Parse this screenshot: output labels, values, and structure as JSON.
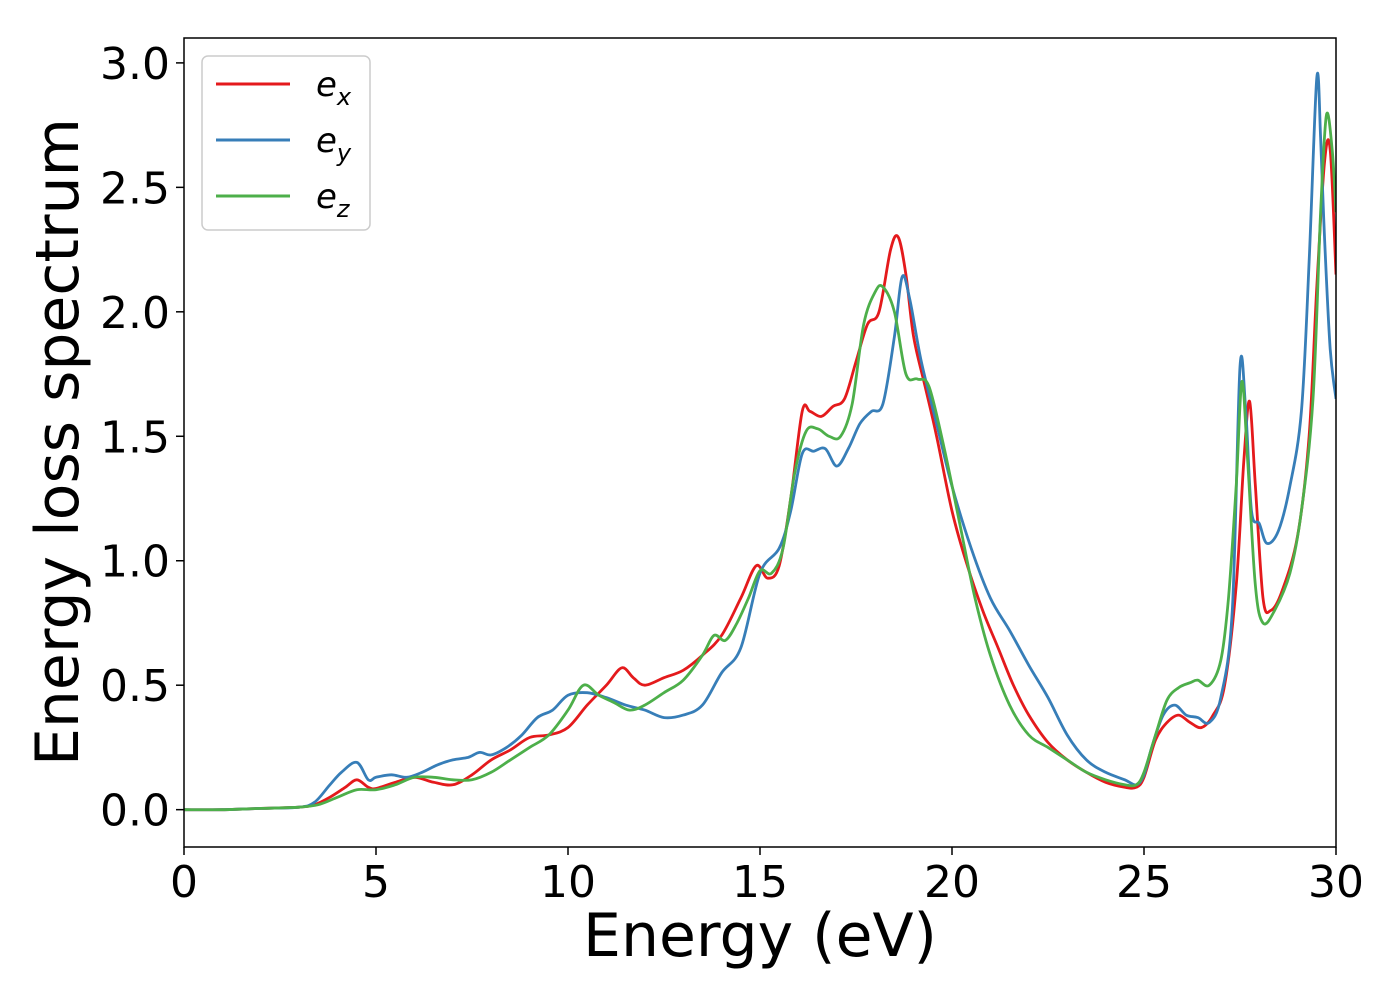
{
  "chart_data": {
    "type": "line",
    "xlabel": "Energy (eV)",
    "ylabel": "Energy loss spectrum",
    "xlim": [
      0,
      30
    ],
    "ylim": [
      -0.15,
      3.1
    ],
    "xticks": [
      "0",
      "5",
      "10",
      "15",
      "20",
      "25",
      "30"
    ],
    "yticks": [
      "0.0",
      "0.5",
      "1.0",
      "1.5",
      "2.0",
      "2.5",
      "3.0"
    ],
    "grid": false,
    "legend_position": "top-left",
    "series": [
      {
        "name": "e",
        "subscript": "x",
        "color": "#e41a1c",
        "x": [
          0,
          1,
          2,
          3,
          3.4,
          3.8,
          4.2,
          4.5,
          4.8,
          5.0,
          5.5,
          6.0,
          6.5,
          7.0,
          7.5,
          8.0,
          8.5,
          9.0,
          9.5,
          10.0,
          10.5,
          11.0,
          11.4,
          11.7,
          12.0,
          12.5,
          13.0,
          13.5,
          14.0,
          14.5,
          14.9,
          15.2,
          15.5,
          15.8,
          16.1,
          16.3,
          16.6,
          16.9,
          17.2,
          17.5,
          17.8,
          18.1,
          18.4,
          18.6,
          18.8,
          19.0,
          19.3,
          19.6,
          20.0,
          20.4,
          20.8,
          21.2,
          21.6,
          22.0,
          22.5,
          23.0,
          23.5,
          24.0,
          24.5,
          24.8,
          25.0,
          25.3,
          25.6,
          25.9,
          26.2,
          26.5,
          26.8,
          27.1,
          27.4,
          27.6,
          27.75,
          27.9,
          28.1,
          28.3,
          28.6,
          29.0,
          29.3,
          29.5,
          29.7,
          29.85,
          30.0
        ],
        "y": [
          0.0,
          0.0,
          0.005,
          0.01,
          0.02,
          0.05,
          0.09,
          0.12,
          0.09,
          0.085,
          0.11,
          0.13,
          0.11,
          0.1,
          0.14,
          0.2,
          0.24,
          0.29,
          0.3,
          0.33,
          0.42,
          0.5,
          0.57,
          0.53,
          0.5,
          0.53,
          0.56,
          0.62,
          0.7,
          0.85,
          0.98,
          0.93,
          0.98,
          1.25,
          1.6,
          1.6,
          1.58,
          1.62,
          1.65,
          1.8,
          1.95,
          2.0,
          2.25,
          2.3,
          2.15,
          1.9,
          1.7,
          1.5,
          1.2,
          0.98,
          0.8,
          0.65,
          0.5,
          0.38,
          0.27,
          0.2,
          0.15,
          0.11,
          0.09,
          0.09,
          0.13,
          0.28,
          0.35,
          0.38,
          0.35,
          0.33,
          0.38,
          0.5,
          0.9,
          1.4,
          1.64,
          1.3,
          0.85,
          0.8,
          0.88,
          1.1,
          1.5,
          2.1,
          2.6,
          2.65,
          2.15
        ]
      },
      {
        "name": "e",
        "subscript": "y",
        "color": "#377eb8",
        "x": [
          0,
          1,
          2,
          3,
          3.4,
          3.8,
          4.1,
          4.5,
          4.8,
          5.0,
          5.4,
          5.8,
          6.2,
          6.6,
          7.0,
          7.4,
          7.7,
          8.0,
          8.4,
          8.8,
          9.2,
          9.6,
          10.0,
          10.5,
          11.0,
          11.5,
          12.0,
          12.5,
          13.0,
          13.5,
          14.0,
          14.5,
          15.0,
          15.5,
          15.8,
          16.1,
          16.4,
          16.7,
          17.0,
          17.3,
          17.6,
          17.9,
          18.2,
          18.5,
          18.7,
          18.9,
          19.2,
          19.6,
          20.0,
          20.5,
          21.0,
          21.5,
          22.0,
          22.5,
          23.0,
          23.5,
          24.0,
          24.5,
          24.8,
          25.0,
          25.2,
          25.5,
          25.8,
          26.1,
          26.4,
          26.7,
          27.0,
          27.3,
          27.5,
          27.65,
          27.8,
          28.0,
          28.2,
          28.5,
          28.8,
          29.1,
          29.3,
          29.5,
          29.6,
          29.7,
          29.85,
          30.0
        ],
        "y": [
          0.0,
          0.0,
          0.005,
          0.01,
          0.03,
          0.1,
          0.15,
          0.19,
          0.12,
          0.13,
          0.14,
          0.13,
          0.15,
          0.18,
          0.2,
          0.21,
          0.23,
          0.22,
          0.25,
          0.3,
          0.37,
          0.4,
          0.46,
          0.47,
          0.45,
          0.42,
          0.4,
          0.37,
          0.38,
          0.42,
          0.55,
          0.65,
          0.95,
          1.05,
          1.2,
          1.43,
          1.44,
          1.45,
          1.38,
          1.45,
          1.55,
          1.6,
          1.63,
          1.9,
          2.14,
          2.05,
          1.8,
          1.55,
          1.3,
          1.05,
          0.85,
          0.72,
          0.58,
          0.45,
          0.3,
          0.2,
          0.15,
          0.12,
          0.1,
          0.14,
          0.25,
          0.38,
          0.42,
          0.38,
          0.37,
          0.35,
          0.45,
          0.8,
          1.78,
          1.6,
          1.2,
          1.15,
          1.07,
          1.12,
          1.3,
          1.6,
          2.2,
          2.94,
          2.7,
          2.3,
          1.85,
          1.65
        ]
      },
      {
        "name": "e",
        "subscript": "z",
        "color": "#4daf4a",
        "x": [
          0,
          1,
          2,
          3,
          3.5,
          4.0,
          4.5,
          5.0,
          5.5,
          6.0,
          6.5,
          7.0,
          7.5,
          8.0,
          8.5,
          9.0,
          9.5,
          10.0,
          10.4,
          10.8,
          11.2,
          11.6,
          12.0,
          12.5,
          13.0,
          13.5,
          13.8,
          14.1,
          14.4,
          14.7,
          15.0,
          15.3,
          15.6,
          15.9,
          16.2,
          16.5,
          16.8,
          17.1,
          17.4,
          17.7,
          18.0,
          18.2,
          18.5,
          18.8,
          19.1,
          19.4,
          19.8,
          20.2,
          20.6,
          21.0,
          21.5,
          22.0,
          22.5,
          23.0,
          23.5,
          24.0,
          24.5,
          24.8,
          25.0,
          25.3,
          25.6,
          25.9,
          26.2,
          26.4,
          26.7,
          27.0,
          27.2,
          27.4,
          27.55,
          27.7,
          27.9,
          28.1,
          28.4,
          28.8,
          29.1,
          29.4,
          29.6,
          29.75,
          29.9,
          30.0
        ],
        "y": [
          0.0,
          0.0,
          0.005,
          0.01,
          0.02,
          0.05,
          0.08,
          0.08,
          0.1,
          0.13,
          0.13,
          0.12,
          0.12,
          0.15,
          0.2,
          0.25,
          0.3,
          0.4,
          0.5,
          0.46,
          0.43,
          0.4,
          0.42,
          0.47,
          0.52,
          0.62,
          0.7,
          0.68,
          0.75,
          0.85,
          0.96,
          0.95,
          1.05,
          1.35,
          1.52,
          1.53,
          1.5,
          1.5,
          1.63,
          1.95,
          2.08,
          2.1,
          2.0,
          1.75,
          1.73,
          1.7,
          1.45,
          1.15,
          0.85,
          0.62,
          0.42,
          0.3,
          0.25,
          0.2,
          0.15,
          0.12,
          0.1,
          0.1,
          0.15,
          0.3,
          0.44,
          0.49,
          0.51,
          0.52,
          0.5,
          0.6,
          0.85,
          1.3,
          1.72,
          1.4,
          0.9,
          0.75,
          0.8,
          0.95,
          1.2,
          1.65,
          2.4,
          2.79,
          2.65,
          2.4
        ]
      }
    ]
  }
}
